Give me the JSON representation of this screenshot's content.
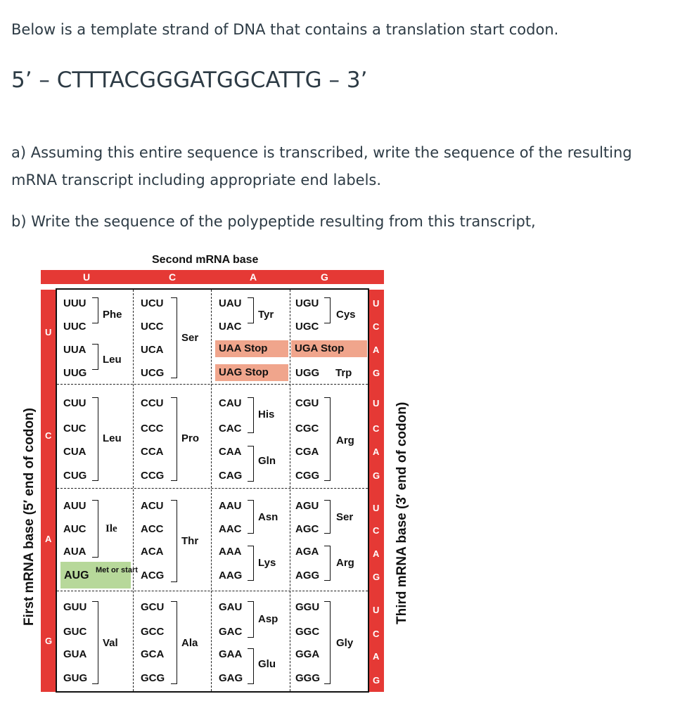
{
  "question": {
    "intro": "Below is a template strand of DNA that contains a translation start codon.",
    "dna_sequence": "5’ – CTTTACGGGATGGCATTG – 3’",
    "part_a_line1": "a) Assuming this entire sequence is transcribed, write the sequence of the resulting",
    "part_a_line2": "mRNA transcript including appropriate end labels.",
    "part_b": "b) Write the sequence of the polypeptide resulting from this transcript,"
  },
  "codon_table": {
    "header_second": "Second mRNA base",
    "second_bases": [
      "U",
      "C",
      "A",
      "G"
    ],
    "first_label": "First mRNA base (5′ end of codon)",
    "third_label": "Third mRNA base (3′ end of codon)",
    "first_bases": [
      "U",
      "C",
      "A",
      "G"
    ],
    "third_bases": [
      "U",
      "C",
      "A",
      "G"
    ],
    "codons": {
      "UUU": "UUU",
      "UUC": "UUC",
      "UUA": "UUA",
      "UUG": "UUG",
      "UCU": "UCU",
      "UCC": "UCC",
      "UCA": "UCA",
      "UCG": "UCG",
      "UAU": "UAU",
      "UAC": "UAC",
      "UAA": "UAA",
      "UAG": "UAG",
      "UGU": "UGU",
      "UGC": "UGC",
      "UGA": "UGA",
      "UGG": "UGG",
      "CUU": "CUU",
      "CUC": "CUC",
      "CUA": "CUA",
      "CUG": "CUG",
      "CCU": "CCU",
      "CCC": "CCC",
      "CCA": "CCA",
      "CCG": "CCG",
      "CAU": "CAU",
      "CAC": "CAC",
      "CAA": "CAA",
      "CAG": "CAG",
      "CGU": "CGU",
      "CGC": "CGC",
      "CGA": "CGA",
      "CGG": "CGG",
      "AUU": "AUU",
      "AUC": "AUC",
      "AUA": "AUA",
      "AUG": "AUG",
      "ACU": "ACU",
      "ACC": "ACC",
      "ACA": "ACA",
      "ACG": "ACG",
      "AAU": "AAU",
      "AAC": "AAC",
      "AAA": "AAA",
      "AAG": "AAG",
      "AGU": "AGU",
      "AGC": "AGC",
      "AGA": "AGA",
      "AGG": "AGG",
      "GUU": "GUU",
      "GUC": "GUC",
      "GUA": "GUA",
      "GUG": "GUG",
      "GCU": "GCU",
      "GCC": "GCC",
      "GCA": "GCA",
      "GCG": "GCG",
      "GAU": "GAU",
      "GAC": "GAC",
      "GAA": "GAA",
      "GAG": "GAG",
      "GGU": "GGU",
      "GGC": "GGC",
      "GGA": "GGA",
      "GGG": "GGG"
    },
    "amino_acids": {
      "phe": "Phe",
      "leu_u": "Leu",
      "ser_u": "Ser",
      "tyr": "Tyr",
      "cys": "Cys",
      "stop": "Stop",
      "trp": "Trp",
      "leu_c": "Leu",
      "pro": "Pro",
      "his": "His",
      "gln": "Gln",
      "arg_c": "Arg",
      "ile": "Ile",
      "met_start": "Met or start",
      "thr": "Thr",
      "asn": "Asn",
      "lys": "Lys",
      "ser_a": "Ser",
      "arg_a": "Arg",
      "val": "Val",
      "ala": "Ala",
      "asp": "Asp",
      "glu": "Glu",
      "gly": "Gly"
    },
    "colors": {
      "base_cell": "#e53935",
      "stop_highlight": "#f0a58c",
      "start_highlight": "#b7d89a"
    }
  }
}
